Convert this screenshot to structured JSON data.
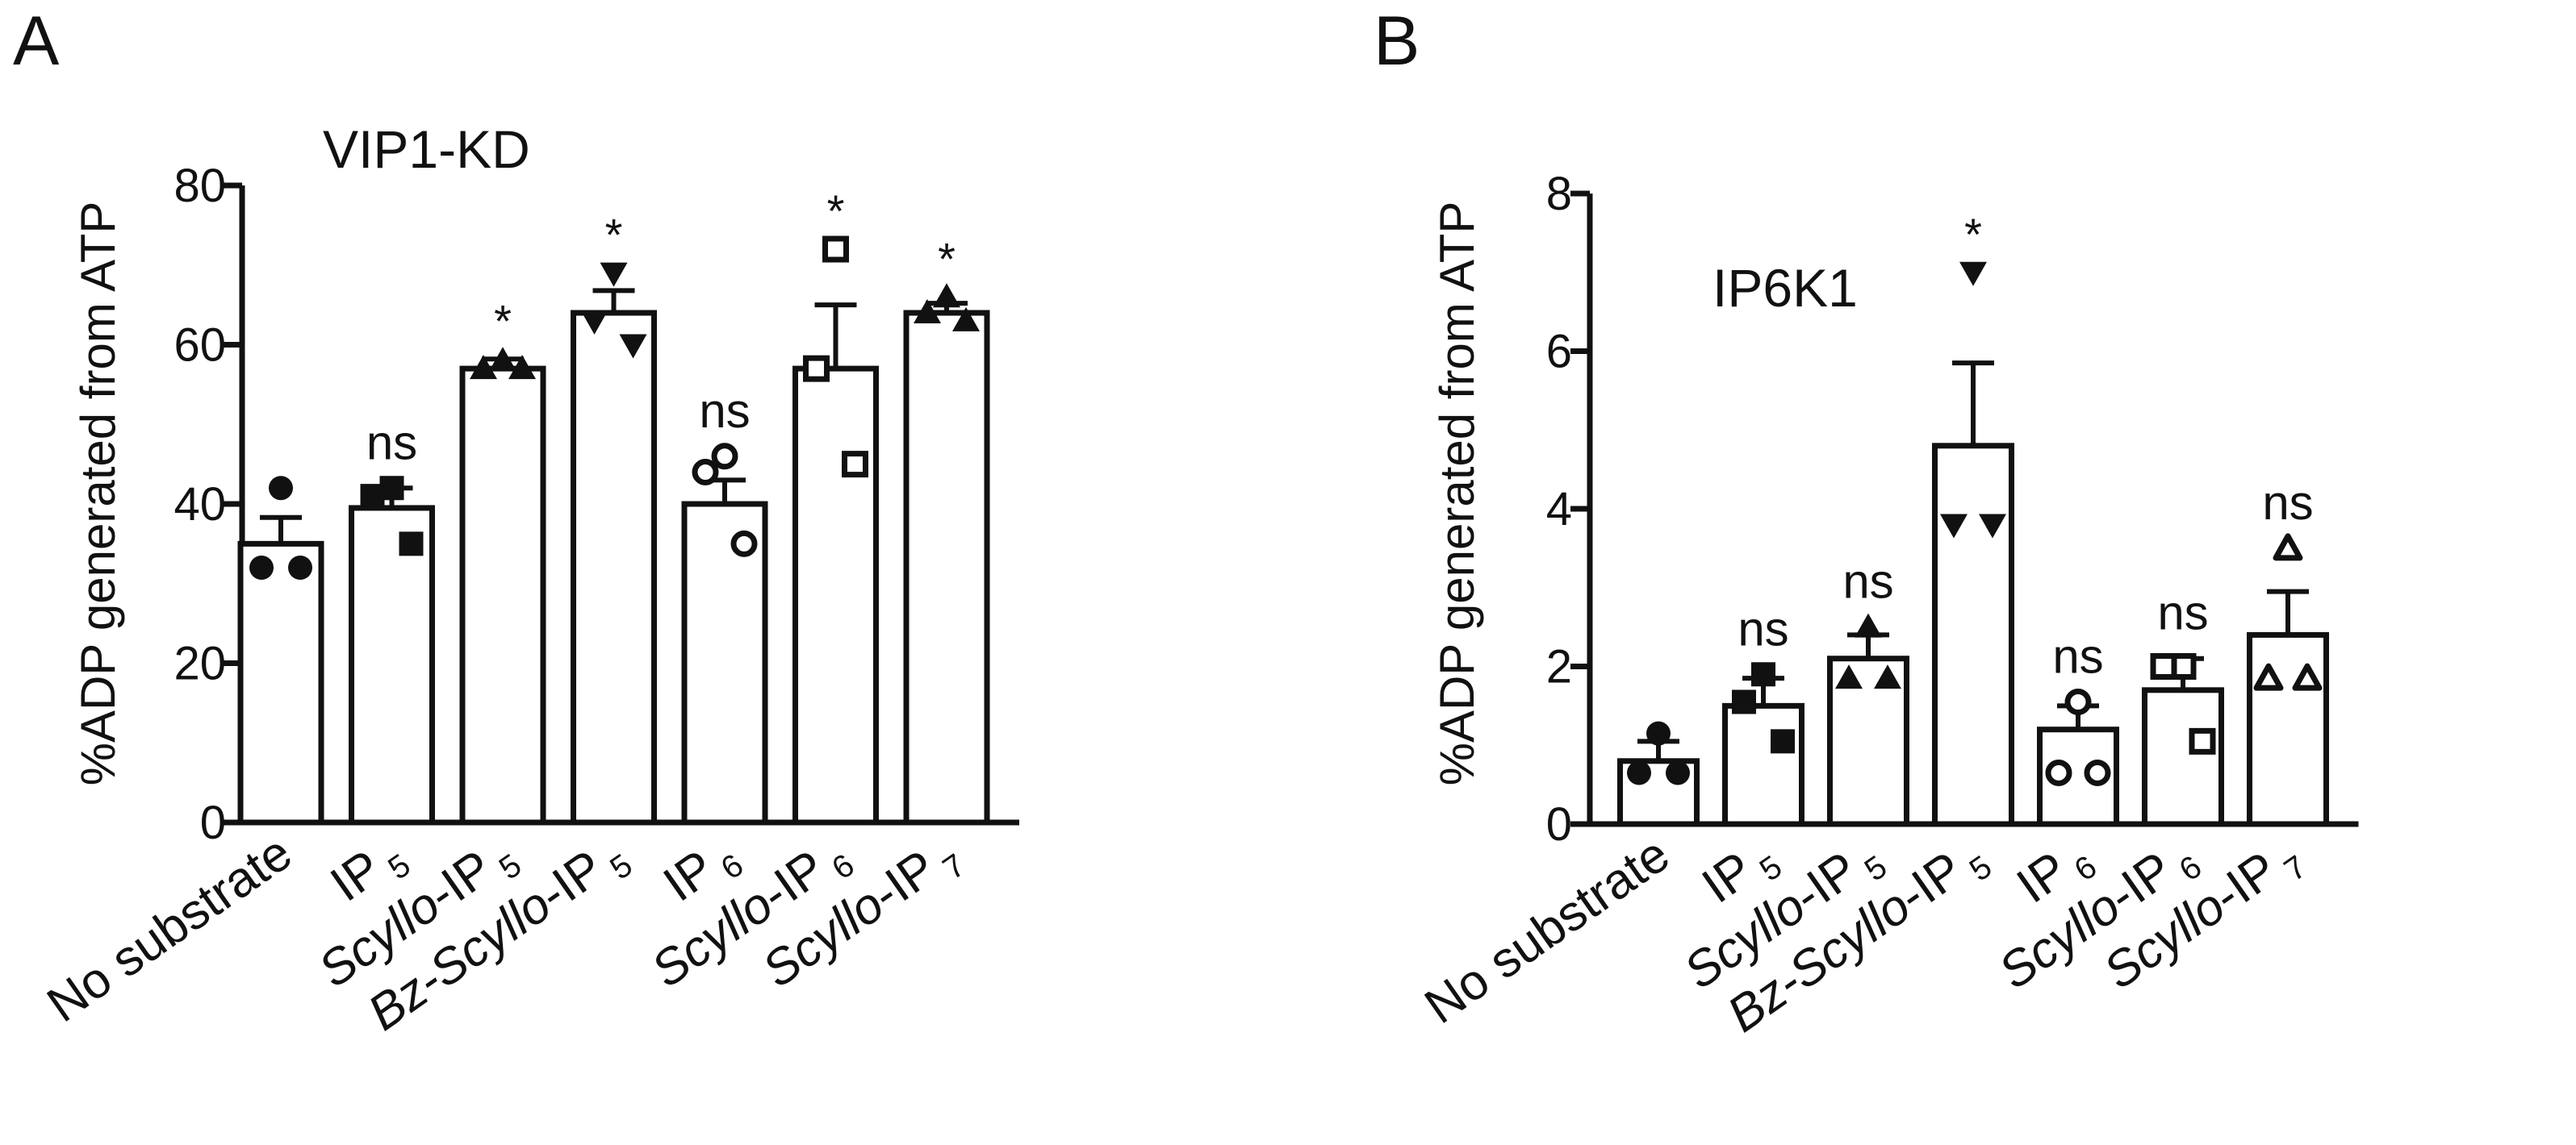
{
  "chart_data": [
    {
      "panel": "A",
      "type": "bar",
      "title": "VIP1-KD",
      "ylabel": "%ADP generated from  ATP",
      "xlabel": "",
      "ylim": [
        0,
        80
      ],
      "yticks": [
        0,
        20,
        40,
        60,
        80
      ],
      "grid": false,
      "categories": [
        {
          "segments": [
            {
              "text": "No substrate"
            }
          ]
        },
        {
          "segments": [
            {
              "text": "IP"
            },
            {
              "text": "5",
              "sub": true
            }
          ]
        },
        {
          "segments": [
            {
              "text": "Scyllo",
              "italic": true
            },
            {
              "text": "-IP"
            },
            {
              "text": "5",
              "sub": true
            }
          ]
        },
        {
          "segments": [
            {
              "text": "Bz-",
              "italic": true
            },
            {
              "text": "Scyllo",
              "italic": true
            },
            {
              "text": "-IP"
            },
            {
              "text": "5",
              "sub": true
            }
          ]
        },
        {
          "segments": [
            {
              "text": "IP"
            },
            {
              "text": "6",
              "sub": true
            }
          ]
        },
        {
          "segments": [
            {
              "text": "Scyllo",
              "italic": true
            },
            {
              "text": "-IP"
            },
            {
              "text": "6",
              "sub": true
            }
          ]
        },
        {
          "segments": [
            {
              "text": "Scyllo",
              "italic": true
            },
            {
              "text": "-IP"
            },
            {
              "text": "7",
              "sub": true
            }
          ]
        }
      ],
      "values": [
        35,
        39.5,
        57,
        64,
        40,
        57,
        64
      ],
      "sem": [
        3.3,
        2.5,
        1.2,
        2.8,
        3,
        8,
        1.2
      ],
      "points": [
        [
          42,
          32,
          32
        ],
        [
          42,
          41,
          35
        ],
        [
          58,
          57,
          57
        ],
        [
          69,
          63,
          60
        ],
        [
          46,
          44,
          35
        ],
        [
          72,
          57,
          45
        ],
        [
          66,
          63,
          64
        ]
      ],
      "markers": [
        "circle",
        "square",
        "triangle",
        "triangle-down",
        "open-circle",
        "open-square",
        "triangle"
      ],
      "significance": [
        "",
        "ns",
        "*",
        "*",
        "ns",
        "*",
        "*"
      ]
    },
    {
      "panel": "B",
      "type": "bar",
      "title": "IP6K1",
      "ylabel": "%ADP generated from ATP",
      "xlabel": "",
      "ylim": [
        0,
        8
      ],
      "yticks": [
        0,
        2,
        4,
        6,
        8
      ],
      "grid": false,
      "categories": [
        {
          "segments": [
            {
              "text": "No substrate"
            }
          ]
        },
        {
          "segments": [
            {
              "text": "IP"
            },
            {
              "text": "5",
              "sub": true
            }
          ]
        },
        {
          "segments": [
            {
              "text": "Scyllo",
              "italic": true
            },
            {
              "text": "-IP"
            },
            {
              "text": "5",
              "sub": true
            }
          ]
        },
        {
          "segments": [
            {
              "text": "Bz-",
              "italic": true
            },
            {
              "text": "Scyllo",
              "italic": true
            },
            {
              "text": "-IP"
            },
            {
              "text": "5",
              "sub": true
            }
          ]
        },
        {
          "segments": [
            {
              "text": "IP"
            },
            {
              "text": "6",
              "sub": true
            }
          ]
        },
        {
          "segments": [
            {
              "text": "Scyllo",
              "italic": true
            },
            {
              "text": "-IP"
            },
            {
              "text": "6",
              "sub": true
            }
          ]
        },
        {
          "segments": [
            {
              "text": "Scyllo",
              "italic": true
            },
            {
              "text": "-IP"
            },
            {
              "text": "7",
              "sub": true
            }
          ]
        }
      ],
      "values": [
        0.8,
        1.5,
        2.1,
        4.8,
        1.2,
        1.7,
        2.4
      ],
      "sem": [
        0.25,
        0.35,
        0.3,
        1.05,
        0.3,
        0.4,
        0.55
      ],
      "points": [
        [
          1.15,
          0.65,
          0.65
        ],
        [
          1.9,
          1.55,
          1.05
        ],
        [
          2.5,
          1.85,
          1.85
        ],
        [
          7.0,
          3.8,
          3.8
        ],
        [
          1.55,
          0.65,
          0.65
        ],
        [
          2.0,
          2.0,
          1.05
        ],
        [
          3.5,
          1.85,
          1.85
        ]
      ],
      "markers": [
        "circle",
        "square",
        "triangle",
        "triangle-down",
        "open-circle",
        "open-square",
        "open-triangle"
      ],
      "significance": [
        "",
        "ns",
        "ns",
        "*",
        "ns",
        "ns",
        "ns"
      ]
    }
  ]
}
